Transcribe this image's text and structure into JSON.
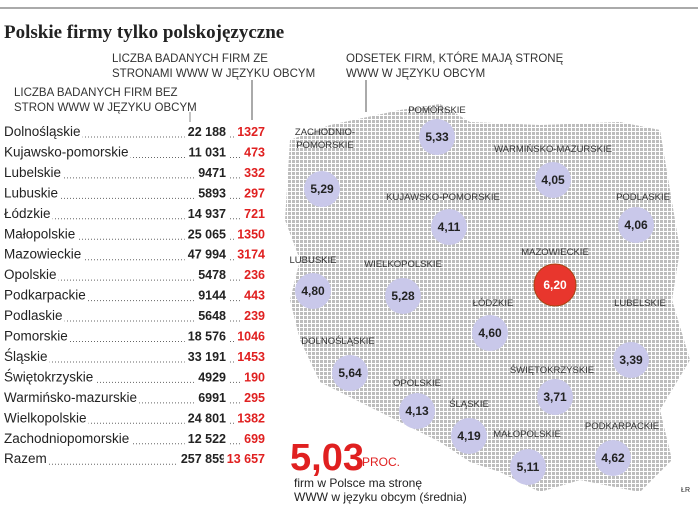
{
  "title": "Polskie firmy tylko polskojęzyczne",
  "table": {
    "header_with": [
      "LICZBA BADANYCH FIRM ZE",
      "STRONAMI WWW W JĘZYKU OBCYM"
    ],
    "header_without": [
      "LICZBA BADANYCH FIRM BEZ",
      "STRON WWW W JĘZYKU OBCYM"
    ],
    "rows": [
      [
        "Dolnośląskie",
        "22 188",
        "1327"
      ],
      [
        "Kujawsko-pomorskie",
        "11 031",
        "473"
      ],
      [
        "Lubelskie",
        "9471",
        "332"
      ],
      [
        "Lubuskie",
        "5893",
        "297"
      ],
      [
        "Łódzkie",
        "14 937",
        "721"
      ],
      [
        "Małopolskie",
        "25 065",
        "1350"
      ],
      [
        "Mazowieckie",
        "47 994",
        "3174"
      ],
      [
        "Opolskie",
        "5478",
        "236"
      ],
      [
        "Podkarpackie",
        "9144",
        "443"
      ],
      [
        "Podlaskie",
        "5648",
        "239"
      ],
      [
        "Pomorskie",
        "18 576",
        "1046"
      ],
      [
        "Śląskie",
        "33 191",
        "1453"
      ],
      [
        "Świętokrzyskie",
        "4929",
        "190"
      ],
      [
        "Warmińsko-mazurskie",
        "6991",
        "295"
      ],
      [
        "Wielkopolskie",
        "24 801",
        "1382"
      ],
      [
        "Zachodniopomorskie",
        "12 522",
        "699"
      ],
      [
        "Razem",
        "257 859",
        "13 657"
      ]
    ]
  },
  "map": {
    "header": [
      "ODSETEK FIRM, KTÓRE MAJĄ STRONĘ",
      "WWW W JĘZYKU OBCYM"
    ],
    "regions": [
      {
        "label": [
          "POMORSKIE"
        ],
        "value": "5,33"
      },
      {
        "label": [
          "ZACHODNIO-",
          "POMORSKIE"
        ],
        "value": "5,29"
      },
      {
        "label": [
          "WARMIŃSKO-MAZURSKIE"
        ],
        "value": "4,05"
      },
      {
        "label": [
          "PODLASKIE"
        ],
        "value": "4,06"
      },
      {
        "label": [
          "KUJAWSKO-POMORSKIE"
        ],
        "value": "4,11"
      },
      {
        "label": [
          "LUBUSKIE"
        ],
        "value": "4,80"
      },
      {
        "label": [
          "WIELKOPOLSKIE"
        ],
        "value": "5,28"
      },
      {
        "label": [
          "MAZOWIECKIE"
        ],
        "value": "6,20"
      },
      {
        "label": [
          "ŁÓDZKIE"
        ],
        "value": "4,60"
      },
      {
        "label": [
          "LUBELSKIE"
        ],
        "value": "3,39"
      },
      {
        "label": [
          "DOLNOŚLĄSKIE"
        ],
        "value": "5,64"
      },
      {
        "label": [
          "ŚWIĘTOKRZYSKIE"
        ],
        "value": "3,71"
      },
      {
        "label": [
          "OPOLSKIE"
        ],
        "value": "4,13"
      },
      {
        "label": [
          "ŚLĄSKIE"
        ],
        "value": "4,19"
      },
      {
        "label": [
          "PODKARPACKIE"
        ],
        "value": "4,62"
      },
      {
        "label": [
          "MAŁOPOLSKIE"
        ],
        "value": "5,11"
      }
    ]
  },
  "summary": {
    "value": "5,03",
    "unit": "PROC.",
    "caption": [
      "firm w Polsce ma stronę",
      "WWW w języku obcym (średnia)"
    ]
  },
  "credit": "ŁR"
}
